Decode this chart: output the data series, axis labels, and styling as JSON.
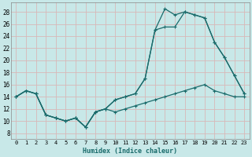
{
  "xlabel": "Humidex (Indice chaleur)",
  "background_color": "#c8e8e8",
  "grid_color": "#c4d8d8",
  "line_color": "#1a6b6b",
  "xlim": [
    -0.5,
    23.5
  ],
  "ylim": [
    7,
    29.5
  ],
  "xticks": [
    0,
    1,
    2,
    3,
    4,
    5,
    6,
    7,
    8,
    9,
    10,
    11,
    12,
    13,
    14,
    15,
    16,
    17,
    18,
    19,
    20,
    21,
    22,
    23
  ],
  "yticks": [
    8,
    10,
    12,
    14,
    16,
    18,
    20,
    22,
    24,
    26,
    28
  ],
  "line1_x": [
    0,
    1,
    2,
    3,
    4,
    5,
    6,
    7,
    8,
    9,
    10,
    11,
    12,
    13,
    14,
    15,
    16,
    17,
    18,
    19,
    20,
    21,
    22,
    23
  ],
  "line1_y": [
    14.0,
    15.0,
    14.5,
    11.0,
    10.5,
    10.0,
    10.5,
    9.0,
    11.5,
    12.0,
    11.5,
    12.0,
    12.5,
    13.0,
    13.5,
    14.0,
    14.5,
    15.0,
    15.5,
    16.0,
    15.0,
    14.5,
    14.0,
    14.0
  ],
  "line2_x": [
    0,
    1,
    2,
    3,
    4,
    5,
    6,
    7,
    8,
    9,
    10,
    11,
    12,
    13,
    14,
    15,
    16,
    17,
    18,
    19,
    20,
    21,
    22,
    23
  ],
  "line2_y": [
    14.0,
    15.0,
    14.5,
    11.0,
    10.5,
    10.0,
    10.5,
    9.0,
    11.5,
    12.0,
    13.5,
    14.0,
    14.5,
    17.0,
    25.0,
    25.5,
    25.5,
    28.0,
    27.5,
    27.0,
    23.0,
    20.5,
    17.5,
    14.5
  ],
  "line3_x": [
    0,
    1,
    2,
    3,
    4,
    5,
    6,
    7,
    8,
    9,
    10,
    11,
    12,
    13,
    14,
    15,
    16,
    17,
    18,
    19,
    20,
    21,
    22,
    23
  ],
  "line3_y": [
    14.0,
    15.0,
    14.5,
    11.0,
    10.5,
    10.0,
    10.5,
    9.0,
    11.5,
    12.0,
    13.5,
    14.0,
    14.5,
    17.0,
    25.0,
    28.5,
    27.5,
    28.0,
    27.5,
    27.0,
    23.0,
    20.5,
    17.5,
    14.5
  ]
}
